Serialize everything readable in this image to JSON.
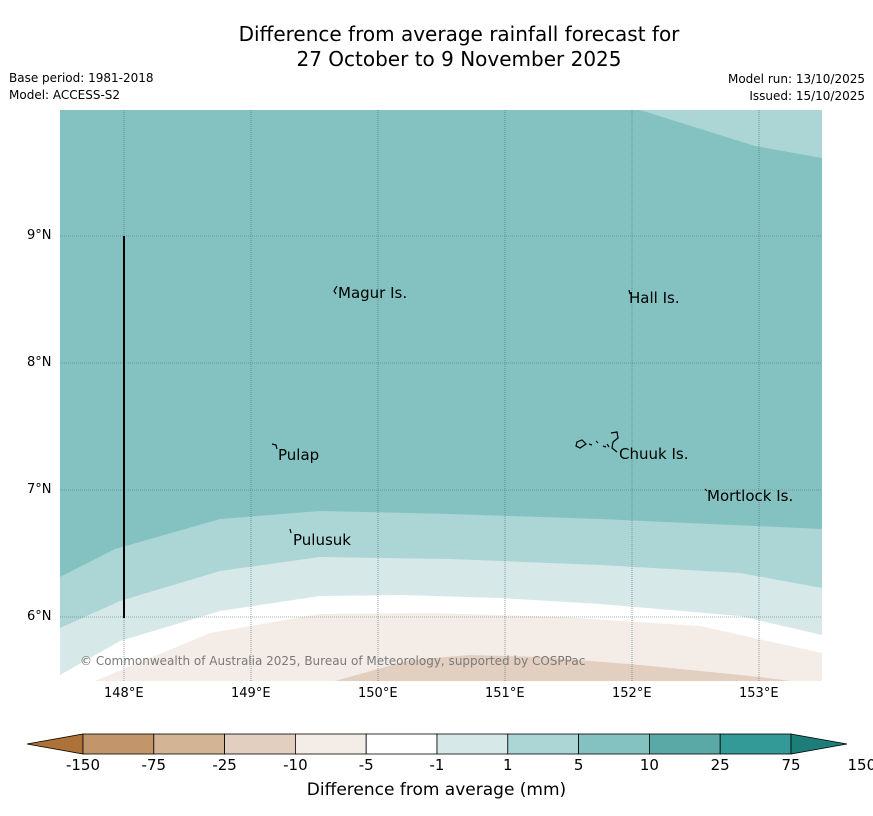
{
  "title": {
    "line1": "Difference from average rainfall forecast for",
    "line2": "27 October to 9 November 2025"
  },
  "meta_left": {
    "base_period": "Base period: 1981-2018",
    "model": "Model: ACCESS-S2"
  },
  "meta_right": {
    "model_run": "Model run: 13/10/2025",
    "issued": "Issued: 15/10/2025"
  },
  "map": {
    "latitude_labels": [
      "9°N",
      "8°N",
      "7°N",
      "6°N"
    ],
    "longitude_labels": [
      "148°E",
      "149°E",
      "150°E",
      "151°E",
      "152°E",
      "153°E"
    ],
    "places": [
      "Magur Is.",
      "Hall Is.",
      "Pulap",
      "Chuuk Is.",
      "Mortlock Is.",
      "Pulusuk"
    ],
    "copyright": "© Commonwealth of Australia 2025, Bureau of Meteorology, supported by COSPPac"
  },
  "colorbar": {
    "labels": [
      "-150",
      "-75",
      "-25",
      "-10",
      "-5",
      "-1",
      "1",
      "5",
      "10",
      "25",
      "75",
      "150"
    ],
    "colors": [
      "#ad7237",
      "#c3956a",
      "#d3b495",
      "#e3cfbf",
      "#f4ece7",
      "#ffffff",
      "#d6e9e8",
      "#acd6d5",
      "#84c2c1",
      "#5ba9a7",
      "#339a97",
      "#1c7d79"
    ],
    "title": "Difference from average (mm)"
  }
}
